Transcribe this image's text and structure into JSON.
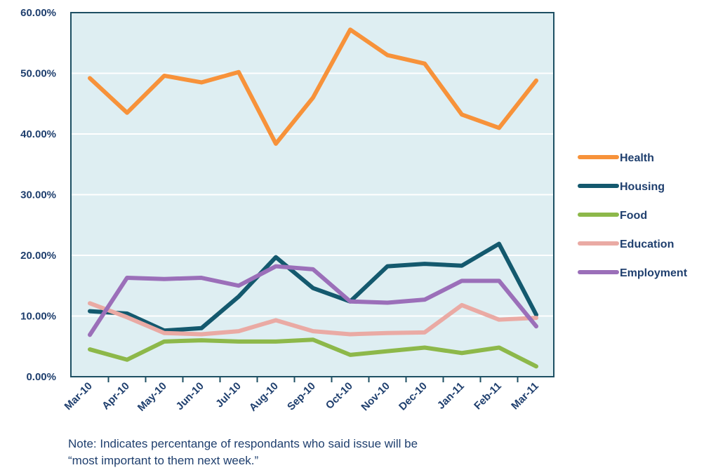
{
  "chart_data": {
    "type": "line",
    "title": "",
    "xlabel": "",
    "ylabel": "",
    "x": [
      "Mar-10",
      "Apr-10",
      "May-10",
      "Jun-10",
      "Jul-10",
      "Aug-10",
      "Sep-10",
      "Oct-10",
      "Nov-10",
      "Dec-10",
      "Jan-11",
      "Feb-11",
      "Mar-11"
    ],
    "ylim": [
      0,
      60
    ],
    "y_ticks": [
      0,
      10,
      20,
      30,
      40,
      50,
      60
    ],
    "y_tick_labels": [
      "0.00%",
      "10.00%",
      "20.00%",
      "30.00%",
      "40.00%",
      "50.00%",
      "60.00%"
    ],
    "grid": true,
    "legend_position": "right",
    "series": [
      {
        "name": "Health",
        "color": "#f7923a",
        "values": [
          49.2,
          43.5,
          49.6,
          48.5,
          50.2,
          38.4,
          46.0,
          57.2,
          53.0,
          51.6,
          43.2,
          41.0,
          48.8
        ]
      },
      {
        "name": "Housing",
        "color": "#14596e",
        "values": [
          10.8,
          10.4,
          7.6,
          8.0,
          13.2,
          19.7,
          14.6,
          12.4,
          18.2,
          18.6,
          18.3,
          21.9,
          10.2
        ]
      },
      {
        "name": "Food",
        "color": "#8db84a",
        "values": [
          4.5,
          2.8,
          5.8,
          6.0,
          5.8,
          5.8,
          6.1,
          3.6,
          4.2,
          4.8,
          3.9,
          4.8,
          1.7
        ]
      },
      {
        "name": "Education",
        "color": "#eaaaa4",
        "values": [
          12.1,
          9.8,
          7.2,
          7.0,
          7.5,
          9.3,
          7.5,
          7.0,
          7.2,
          7.3,
          11.8,
          9.4,
          9.7
        ]
      },
      {
        "name": "Employment",
        "color": "#9b6fb9",
        "values": [
          6.9,
          16.3,
          16.1,
          16.3,
          15.0,
          18.2,
          17.7,
          12.4,
          12.2,
          12.7,
          15.8,
          15.8,
          8.3
        ]
      }
    ]
  },
  "note": {
    "line1": "Note: Indicates percentange of respondants who said issue will be",
    "line2": "“most important to them next week.”"
  },
  "colors": {
    "plot_background": "#deeef2",
    "plot_border": "#1d4f63",
    "gridline": "#ffffff",
    "text": "#1f3f6e"
  }
}
